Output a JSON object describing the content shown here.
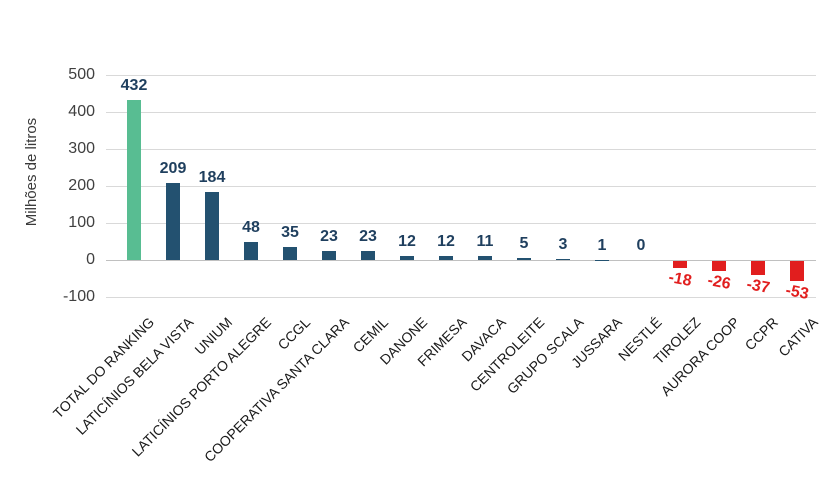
{
  "chart_data": {
    "type": "bar",
    "title": "",
    "xlabel": "",
    "ylabel": "Milhões de litros",
    "ylim": [
      -100,
      500
    ],
    "yticks": [
      500,
      400,
      300,
      200,
      100,
      0,
      -100
    ],
    "grid": true,
    "legend": null,
    "categories": [
      "TOTAL DO RANKING",
      "LATICÍNIOS BELA VISTA",
      "UNIUM",
      "LATICÍNIOS PORTO ALEGRE",
      "CCGL",
      "COOPERATIVA SANTA CLARA",
      "CEMIL",
      "DANONE",
      "FRIMESA",
      "DAVACA",
      "CENTROLEITE",
      "GRUPO SCALA",
      "JUSSARA",
      "NESTLÉ",
      "TIROLEZ",
      "AURORA COOP",
      "CCPR",
      "CATIVA"
    ],
    "values": [
      432,
      209,
      184,
      48,
      35,
      23,
      23,
      12,
      12,
      11,
      5,
      3,
      1,
      0,
      -18,
      -26,
      -37,
      -53
    ],
    "data_labels": [
      "432",
      "209",
      "184",
      "48",
      "35",
      "23",
      "23",
      "12",
      "12",
      "11",
      "5",
      "3",
      "1",
      "0",
      "-18",
      "-26",
      "-37",
      "-53"
    ],
    "colors": {
      "total_bar": "#58BD92",
      "positive_bar": "#235170",
      "negative_bar": "#E11E1E",
      "positive_value_text": "#1F3F5E",
      "negative_value_text": "#E11E1E",
      "gridline": "#D9D9D9",
      "zero_line": "#C0C0C0",
      "axis_tick_text": "#404040",
      "category_text": "#1A1A1A"
    }
  }
}
